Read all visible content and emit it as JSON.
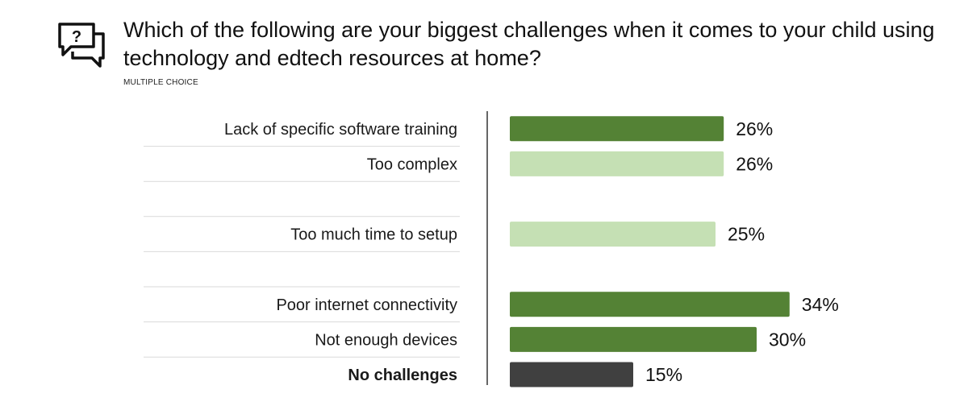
{
  "header": {
    "icon": "question-chat-icon",
    "title": "Which of the following are your biggest challenges when it comes to your child using technology and edtech resources at home?",
    "subtitle": "MULTIPLE CHOICE"
  },
  "colors": {
    "dark_green": "#548235",
    "light_green": "#c5e0b4",
    "dark_gray": "#404040",
    "axis": "#333333",
    "separator": "#d9d9d9"
  },
  "chart_data": {
    "type": "bar",
    "orientation": "horizontal",
    "categories": [
      "Lack of specific software training",
      "Too complex",
      "",
      "Too much time to setup",
      "",
      "Poor internet connectivity",
      "Not enough devices",
      "No challenges"
    ],
    "values": [
      26,
      26,
      null,
      25,
      null,
      34,
      30,
      15
    ],
    "value_labels": [
      "26%",
      "26%",
      "",
      "25%",
      "",
      "34%",
      "30%",
      "15%"
    ],
    "bar_colors": [
      "dark_green",
      "light_green",
      null,
      "light_green",
      null,
      "dark_green",
      "dark_green",
      "dark_gray"
    ],
    "bold_categories": [
      "No challenges"
    ],
    "xlim": [
      0,
      100
    ],
    "grid": false,
    "legend": "none"
  }
}
